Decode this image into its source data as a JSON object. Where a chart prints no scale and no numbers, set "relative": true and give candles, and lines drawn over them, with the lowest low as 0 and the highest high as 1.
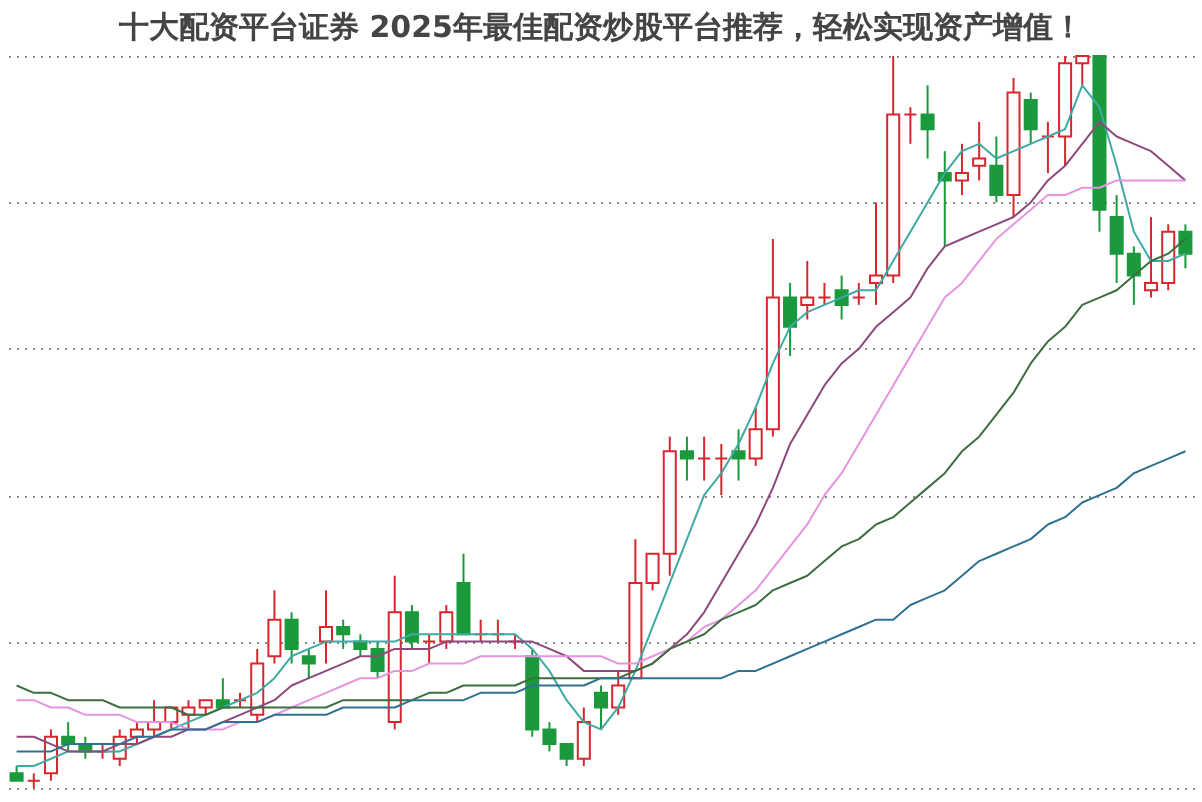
{
  "chart_data": {
    "type": "candlestick",
    "title": "十大配资平台证券 2025年最佳配资炒股平台推荐，轻松实现资产增值！",
    "relative": true,
    "grid": true,
    "tick_labels": false,
    "categories": [
      null,
      null,
      null,
      null,
      null,
      null,
      null,
      null,
      null,
      null,
      null,
      null,
      null,
      null,
      null,
      null,
      null,
      null,
      null,
      null,
      null,
      null,
      null,
      null,
      null,
      null,
      null,
      null,
      null,
      null,
      null,
      null,
      null,
      null,
      null,
      null,
      null,
      null,
      null,
      null,
      null,
      null,
      null,
      null,
      null,
      null,
      null,
      null,
      null,
      null,
      null,
      null,
      null,
      null,
      null,
      null,
      null,
      null,
      null,
      null,
      null,
      null,
      null,
      null,
      null,
      null,
      null,
      null,
      null
    ],
    "ohlc": [
      [
        0.02,
        0.03,
        0.01,
        0.01
      ],
      [
        0.01,
        0.02,
        0,
        0.01
      ],
      [
        0.02,
        0.08,
        0.01,
        0.07
      ],
      [
        0.07,
        0.09,
        0.05,
        0.06
      ],
      [
        0.06,
        0.07,
        0.04,
        0.05
      ],
      [
        0.05,
        0.06,
        0.04,
        0.05
      ],
      [
        0.04,
        0.08,
        0.03,
        0.07
      ],
      [
        0.07,
        0.09,
        0.06,
        0.08
      ],
      [
        0.08,
        0.12,
        0.07,
        0.09
      ],
      [
        0.09,
        0.11,
        0.08,
        0.11
      ],
      [
        0.1,
        0.12,
        0.08,
        0.11
      ],
      [
        0.11,
        0.12,
        0.1,
        0.12
      ],
      [
        0.12,
        0.15,
        0.11,
        0.11
      ],
      [
        0.12,
        0.13,
        0.11,
        0.12
      ],
      [
        0.1,
        0.19,
        0.09,
        0.17
      ],
      [
        0.18,
        0.27,
        0.17,
        0.23
      ],
      [
        0.23,
        0.24,
        0.17,
        0.19
      ],
      [
        0.18,
        0.19,
        0.15,
        0.17
      ],
      [
        0.2,
        0.27,
        0.17,
        0.22
      ],
      [
        0.22,
        0.23,
        0.19,
        0.21
      ],
      [
        0.2,
        0.21,
        0.18,
        0.19
      ],
      [
        0.19,
        0.2,
        0.15,
        0.16
      ],
      [
        0.09,
        0.29,
        0.08,
        0.24
      ],
      [
        0.24,
        0.25,
        0.19,
        0.2
      ],
      [
        0.2,
        0.21,
        0.17,
        0.2
      ],
      [
        0.2,
        0.25,
        0.19,
        0.24
      ],
      [
        0.28,
        0.32,
        0.21,
        0.21
      ],
      [
        0.21,
        0.23,
        0.2,
        0.21
      ],
      [
        0.21,
        0.23,
        0.2,
        0.21
      ],
      [
        0.2,
        0.21,
        0.19,
        0.2
      ],
      [
        0.18,
        0.19,
        0.07,
        0.08
      ],
      [
        0.08,
        0.09,
        0.05,
        0.06
      ],
      [
        0.06,
        0.06,
        0.03,
        0.04
      ],
      [
        0.04,
        0.11,
        0.03,
        0.09
      ],
      [
        0.13,
        0.14,
        0.08,
        0.11
      ],
      [
        0.11,
        0.16,
        0.1,
        0.14
      ],
      [
        0.15,
        0.34,
        0.15,
        0.28
      ],
      [
        0.28,
        0.32,
        0.27,
        0.32
      ],
      [
        0.32,
        0.48,
        0.29,
        0.46
      ],
      [
        0.46,
        0.48,
        0.42,
        0.45
      ],
      [
        0.45,
        0.48,
        0.42,
        0.45
      ],
      [
        0.45,
        0.47,
        0.4,
        0.45
      ],
      [
        0.46,
        0.49,
        0.42,
        0.45
      ],
      [
        0.45,
        0.52,
        0.44,
        0.49
      ],
      [
        0.49,
        0.75,
        0.48,
        0.67
      ],
      [
        0.67,
        0.69,
        0.59,
        0.63
      ],
      [
        0.66,
        0.72,
        0.64,
        0.67
      ],
      [
        0.67,
        0.69,
        0.66,
        0.67
      ],
      [
        0.68,
        0.7,
        0.64,
        0.66
      ],
      [
        0.67,
        0.69,
        0.66,
        0.67
      ],
      [
        0.69,
        0.8,
        0.66,
        0.7
      ],
      [
        0.7,
        1.0,
        0.69,
        0.92
      ],
      [
        0.92,
        0.93,
        0.88,
        0.92
      ],
      [
        0.92,
        0.96,
        0.86,
        0.9
      ],
      [
        0.84,
        0.87,
        0.74,
        0.83
      ],
      [
        0.83,
        0.88,
        0.81,
        0.84
      ],
      [
        0.85,
        0.91,
        0.83,
        0.86
      ],
      [
        0.85,
        0.89,
        0.8,
        0.81
      ],
      [
        0.81,
        0.97,
        0.78,
        0.95
      ],
      [
        0.94,
        0.95,
        0.88,
        0.9
      ],
      [
        0.89,
        0.91,
        0.84,
        0.89
      ],
      [
        0.89,
        1.0,
        0.85,
        0.99
      ],
      [
        0.99,
        1.0,
        0.96,
        1.0
      ],
      [
        1.0,
        1.0,
        0.76,
        0.79
      ],
      [
        0.78,
        0.81,
        0.69,
        0.73
      ],
      [
        0.73,
        0.74,
        0.66,
        0.7
      ],
      [
        0.68,
        0.78,
        0.67,
        0.69
      ],
      [
        0.69,
        0.77,
        0.68,
        0.76
      ],
      [
        0.76,
        0.77,
        0.71,
        0.73
      ]
    ],
    "series": [
      {
        "type": "line",
        "color": "#3fa9a3",
        "values": [
          0.03,
          0.03,
          0.04,
          0.05,
          0.05,
          0.05,
          0.05,
          0.06,
          0.07,
          0.08,
          0.09,
          0.1,
          0.11,
          0.12,
          0.13,
          0.15,
          0.18,
          0.19,
          0.2,
          0.2,
          0.2,
          0.2,
          0.2,
          0.21,
          0.21,
          0.21,
          0.21,
          0.21,
          0.21,
          0.21,
          0.19,
          0.16,
          0.12,
          0.09,
          0.08,
          0.11,
          0.16,
          0.22,
          0.28,
          0.34,
          0.4,
          0.43,
          0.47,
          0.52,
          0.58,
          0.63,
          0.65,
          0.66,
          0.67,
          0.68,
          0.68,
          0.72,
          0.76,
          0.8,
          0.84,
          0.87,
          0.88,
          0.86,
          0.87,
          0.88,
          0.89,
          0.9,
          0.96,
          0.93,
          0.85,
          0.76,
          0.72,
          0.72,
          0.73
        ]
      },
      {
        "type": "line",
        "color": "#8c4a7c",
        "values": [
          0.07,
          0.07,
          0.06,
          0.05,
          0.05,
          0.05,
          0.06,
          0.06,
          0.07,
          0.07,
          0.08,
          0.08,
          0.09,
          0.1,
          0.11,
          0.12,
          0.14,
          0.15,
          0.16,
          0.17,
          0.18,
          0.18,
          0.19,
          0.19,
          0.19,
          0.2,
          0.2,
          0.2,
          0.2,
          0.2,
          0.2,
          0.19,
          0.18,
          0.16,
          0.16,
          0.16,
          0.16,
          0.17,
          0.19,
          0.21,
          0.24,
          0.28,
          0.32,
          0.36,
          0.41,
          0.47,
          0.51,
          0.55,
          0.58,
          0.6,
          0.63,
          0.65,
          0.67,
          0.71,
          0.74,
          0.75,
          0.76,
          0.77,
          0.78,
          0.8,
          0.83,
          0.85,
          0.88,
          0.91,
          0.89,
          0.88,
          0.87,
          0.85,
          0.83
        ]
      },
      {
        "type": "line",
        "color": "#e494e0",
        "values": [
          0.12,
          0.12,
          0.11,
          0.11,
          0.1,
          0.1,
          0.1,
          0.09,
          0.09,
          0.09,
          0.08,
          0.08,
          0.08,
          0.09,
          0.09,
          0.1,
          0.11,
          0.12,
          0.13,
          0.14,
          0.15,
          0.15,
          0.16,
          0.16,
          0.17,
          0.17,
          0.17,
          0.18,
          0.18,
          0.18,
          0.18,
          0.18,
          0.18,
          0.18,
          0.18,
          0.17,
          0.17,
          0.18,
          0.19,
          0.2,
          0.22,
          0.23,
          0.25,
          0.27,
          0.3,
          0.33,
          0.36,
          0.4,
          0.43,
          0.47,
          0.51,
          0.55,
          0.59,
          0.63,
          0.67,
          0.69,
          0.72,
          0.75,
          0.77,
          0.79,
          0.81,
          0.81,
          0.82,
          0.82,
          0.83,
          0.83,
          0.83,
          0.83,
          0.83
        ]
      },
      {
        "type": "line",
        "color": "#3d6e3f",
        "values": [
          0.14,
          0.13,
          0.13,
          0.12,
          0.12,
          0.12,
          0.11,
          0.11,
          0.11,
          0.11,
          0.1,
          0.1,
          0.11,
          0.11,
          0.11,
          0.11,
          0.11,
          0.11,
          0.11,
          0.12,
          0.12,
          0.12,
          0.12,
          0.12,
          0.13,
          0.13,
          0.14,
          0.14,
          0.14,
          0.14,
          0.15,
          0.15,
          0.15,
          0.15,
          0.15,
          0.15,
          0.16,
          0.17,
          0.19,
          0.2,
          0.21,
          0.23,
          0.24,
          0.25,
          0.27,
          0.28,
          0.29,
          0.31,
          0.33,
          0.34,
          0.36,
          0.37,
          0.39,
          0.41,
          0.43,
          0.46,
          0.48,
          0.51,
          0.54,
          0.58,
          0.61,
          0.63,
          0.66,
          0.67,
          0.68,
          0.7,
          0.72,
          0.73,
          0.75
        ]
      },
      {
        "type": "line",
        "color": "#2f7191",
        "values": [
          0.05,
          0.05,
          0.05,
          0.06,
          0.06,
          0.06,
          0.06,
          0.07,
          0.07,
          0.08,
          0.08,
          0.08,
          0.09,
          0.09,
          0.09,
          0.1,
          0.1,
          0.1,
          0.1,
          0.11,
          0.11,
          0.11,
          0.11,
          0.12,
          0.12,
          0.12,
          0.12,
          0.13,
          0.13,
          0.13,
          0.14,
          0.14,
          0.14,
          0.14,
          0.15,
          0.15,
          0.15,
          0.15,
          0.15,
          0.15,
          0.15,
          0.15,
          0.16,
          0.16,
          0.17,
          0.18,
          0.19,
          0.2,
          0.21,
          0.22,
          0.23,
          0.23,
          0.25,
          0.26,
          0.27,
          0.29,
          0.31,
          0.32,
          0.33,
          0.34,
          0.36,
          0.37,
          0.39,
          0.4,
          0.41,
          0.43,
          0.44,
          0.45,
          0.46
        ]
      }
    ]
  }
}
